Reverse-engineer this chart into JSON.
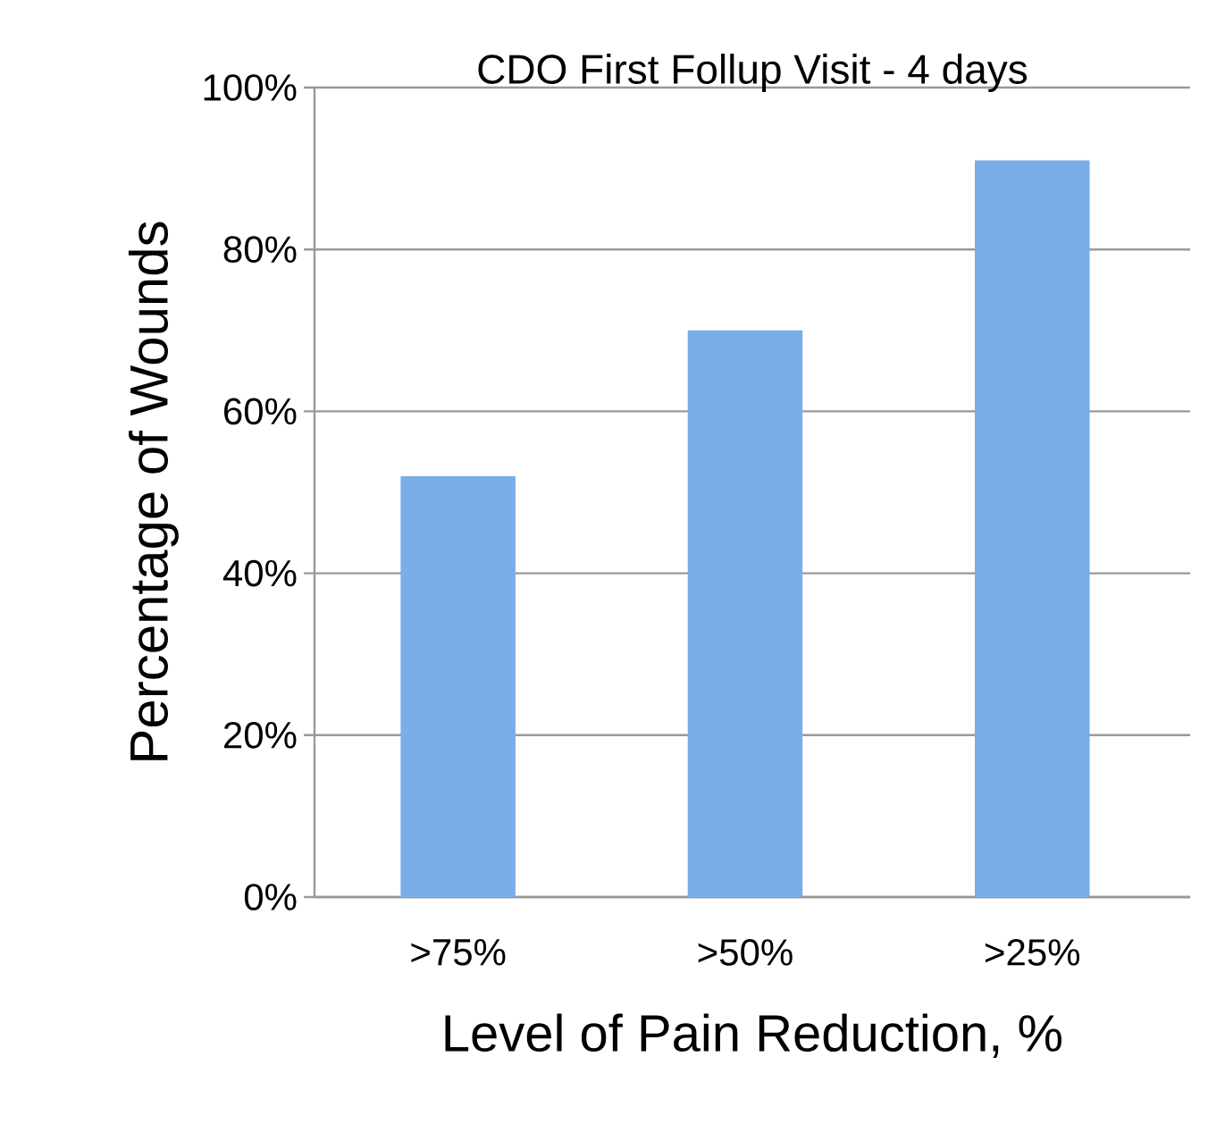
{
  "chart_data": {
    "type": "bar",
    "title": "CDO First Follup Visit - 4 days",
    "xlabel": "Level of Pain Reduction, %",
    "ylabel": "Percentage of Wounds",
    "categories": [
      ">75%",
      ">50%",
      ">25%"
    ],
    "values": [
      52,
      70,
      91
    ],
    "color": "#79aee6",
    "ylim": [
      0,
      100
    ],
    "yticks": [
      {
        "value": 0,
        "label": "0%"
      },
      {
        "value": 20,
        "label": "20%"
      },
      {
        "value": 40,
        "label": "40%"
      },
      {
        "value": 60,
        "label": "60%"
      },
      {
        "value": 80,
        "label": "80%"
      },
      {
        "value": 100,
        "label": "100%"
      }
    ],
    "grid": "y"
  }
}
